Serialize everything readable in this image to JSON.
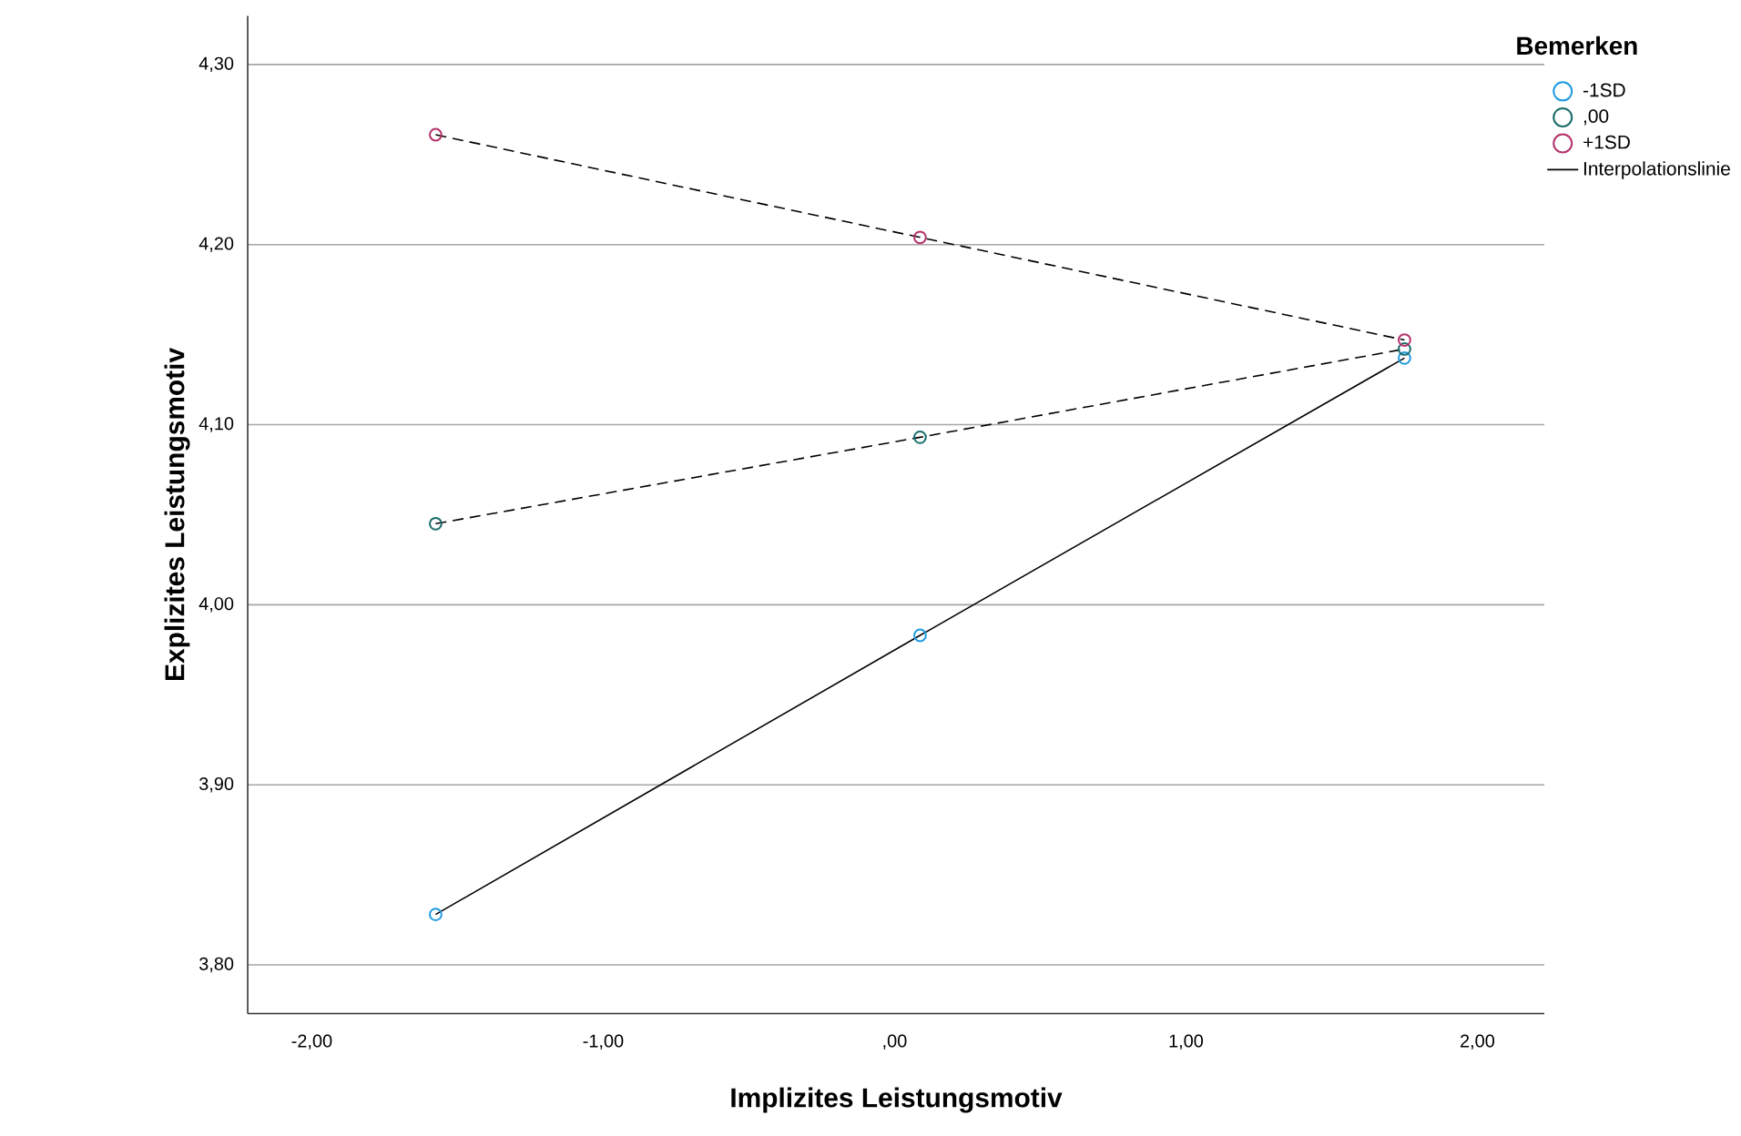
{
  "chart_data": {
    "type": "line",
    "xlabel": "Implizites Leistungsmotiv",
    "ylabel": "Explizites Leistungsmotiv",
    "legend_title": "Bemerken",
    "x": [
      -1.575,
      0.0875,
      1.75
    ],
    "series": [
      {
        "name": "-1SD",
        "color": "#1f9be0",
        "line_style": "solid",
        "values": [
          3.828,
          3.983,
          4.137
        ]
      },
      {
        "name": ",00",
        "color": "#1a6b6b",
        "line_style": "dashed",
        "values": [
          4.045,
          4.093,
          4.142
        ]
      },
      {
        "name": "+1SD",
        "color": "#b5326c",
        "line_style": "dashed",
        "values": [
          4.261,
          4.204,
          4.147
        ]
      }
    ],
    "annotations": [
      "Interpolationslinie"
    ],
    "marker": "circle",
    "grid": "y",
    "legend": "top right",
    "xlim": [
      -2.22,
      2.23
    ],
    "xticks": [
      {
        "value": -2,
        "label": "-2,00"
      },
      {
        "value": -1,
        "label": "-1,00"
      },
      {
        "value": 0,
        "label": ",00"
      },
      {
        "value": 1,
        "label": "1,00"
      },
      {
        "value": 2,
        "label": "2,00"
      }
    ],
    "ylim": [
      3.773,
      4.327
    ],
    "yticks": [
      {
        "value": 3.8,
        "label": "3,80"
      },
      {
        "value": 3.9,
        "label": "3,90"
      },
      {
        "value": 4.0,
        "label": "4,00"
      },
      {
        "value": 4.1,
        "label": "4,10"
      },
      {
        "value": 4.2,
        "label": "4,20"
      },
      {
        "value": 4.3,
        "label": "4,30"
      }
    ]
  }
}
